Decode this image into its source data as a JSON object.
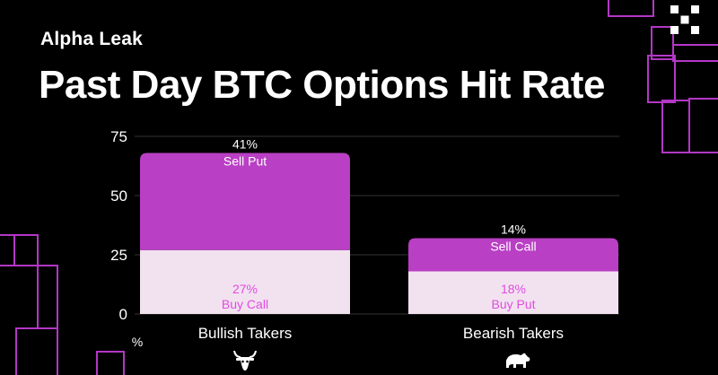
{
  "header": {
    "subtitle": "Alpha Leak",
    "title": "Past Day BTC Options Hit Rate"
  },
  "icons": [
    "bull-icon",
    "bear-icon"
  ],
  "colors": {
    "background": "#000000",
    "accent_purple": "#b93fc4",
    "light_pink": "#f2e2f0",
    "label_pink": "#e04ce0",
    "decor_magenta": "#c73ddc"
  },
  "chart_data": {
    "type": "bar",
    "stacked": true,
    "categories": [
      "Bullish Takers",
      "Bearish Takers"
    ],
    "series": [
      {
        "name": "",
        "segment_labels": [
          "Buy Call",
          "Buy Put"
        ],
        "display_values": [
          "27%",
          "18%"
        ],
        "values": [
          27,
          18
        ],
        "color": "#f2e2f0"
      },
      {
        "name": "",
        "segment_labels": [
          "Sell Put",
          "Sell Call"
        ],
        "display_values": [
          "41%",
          "14%"
        ],
        "values": [
          41,
          14
        ],
        "color": "#b93fc4"
      }
    ],
    "ylim": [
      0,
      75
    ],
    "yticks": [
      "0",
      "25",
      "50",
      "75"
    ],
    "ylabel": "%",
    "xlabel": "",
    "grid": true
  }
}
